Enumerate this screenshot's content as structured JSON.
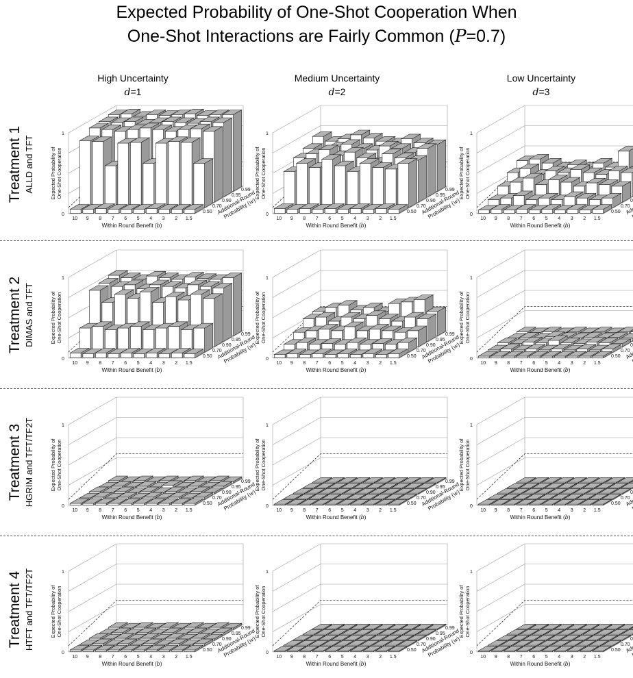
{
  "title_line_1": "Expected Probability of One-Shot Cooperation When",
  "title_line_2_prefix": "One-Shot Interactions are Fairly Common (",
  "title_line_2_var": "P",
  "title_line_2_suffix": "=0.7)",
  "colors": {
    "bar_top": "#b3b3b3",
    "bar_front": "#ffffff",
    "bar_side": "#9a9a9a",
    "edge": "#222222",
    "grid": "#999999",
    "divider": "#555555"
  },
  "columns": [
    {
      "heading": "High Uncertainty",
      "var": "d",
      "value": "=1"
    },
    {
      "heading": "Medium Uncertainty",
      "var": "d",
      "value": "=2"
    },
    {
      "heading": "Low Uncertainty",
      "var": "d",
      "value": "=3"
    }
  ],
  "rows": [
    {
      "title": "Treatment 1",
      "subtitle": "ALLD and TFT"
    },
    {
      "title": "Treatment 2",
      "subtitle": "DIMAS and TFT"
    },
    {
      "title": "Treatment 3",
      "subtitle": "HGRIM and TFT/TF2T"
    },
    {
      "title": "Treatment 4",
      "subtitle": "HTFT and TFT/TF2T"
    }
  ],
  "axis_labels": {
    "z_line_1": "Expected Probability of",
    "z_line_2": "One-Shot Cooperation",
    "x": "Within Round Benefit (",
    "x_var": "b",
    "x_close": ")",
    "y_line_1": "Additional-Round",
    "y_line_2": "Probability (",
    "y_var": "w",
    "y_close": ")"
  },
  "chart_data": {
    "type": "bar3d",
    "x_name": "Within Round Benefit (b)",
    "y_name": "Additional-Round Probability (w)",
    "z_name": "Expected Probability of One-Shot Cooperation",
    "b_ticks": [
      "10",
      "9",
      "8",
      "7",
      "6",
      "5",
      "4",
      "3",
      "2",
      "1.5"
    ],
    "w_ticks": [
      "0.50",
      "0.70",
      "0.90",
      "0.95",
      "0.99"
    ],
    "z_ticks": [
      "0",
      "1"
    ],
    "zlim": [
      0,
      1
    ],
    "panel_order": "rows[treatment] x columns[uncertainty d=1,2,3]; values[w_index][b_index], w order 0.50,0.70,0.90,0.95,0.99; b order 10..1.5",
    "panels": [
      {
        "treatment": "Treatment 1",
        "d": "1",
        "values": [
          [
            0.05,
            0.05,
            0.06,
            0.05,
            0.05,
            0.05,
            0.06,
            0.05,
            0.05,
            0.05
          ],
          [
            0.83,
            0.82,
            0.52,
            0.8,
            0.81,
            0.55,
            0.8,
            0.82,
            0.81,
            0.55
          ],
          [
            0.92,
            0.9,
            0.88,
            0.9,
            0.92,
            0.9,
            0.88,
            0.9,
            0.91,
            0.88
          ],
          [
            0.93,
            0.92,
            0.93,
            0.9,
            0.92,
            0.93,
            0.92,
            0.91,
            0.93,
            0.92
          ],
          [
            0.95,
            0.96,
            0.93,
            0.95,
            0.94,
            0.95,
            0.96,
            0.94,
            0.95,
            0.95
          ]
        ]
      },
      {
        "treatment": "Treatment 1",
        "d": "2",
        "values": [
          [
            0.06,
            0.05,
            0.06,
            0.05,
            0.06,
            0.05,
            0.06,
            0.05,
            0.06,
            0.05
          ],
          [
            0.45,
            0.55,
            0.5,
            0.6,
            0.52,
            0.45,
            0.55,
            0.5,
            0.48,
            0.55
          ],
          [
            0.55,
            0.6,
            0.65,
            0.58,
            0.62,
            0.55,
            0.5,
            0.6,
            0.55,
            0.52
          ],
          [
            0.6,
            0.55,
            0.62,
            0.65,
            0.6,
            0.58,
            0.63,
            0.6,
            0.55,
            0.6
          ],
          [
            0.68,
            0.62,
            0.65,
            0.7,
            0.66,
            0.62,
            0.6,
            0.65,
            0.6,
            0.58
          ]
        ]
      },
      {
        "treatment": "Treatment 1",
        "d": "3",
        "values": [
          [
            0.04,
            0.05,
            0.04,
            0.05,
            0.04,
            0.05,
            0.04,
            0.05,
            0.04,
            0.05
          ],
          [
            0.1,
            0.12,
            0.15,
            0.1,
            0.12,
            0.1,
            0.14,
            0.12,
            0.1,
            0.12
          ],
          [
            0.2,
            0.25,
            0.3,
            0.22,
            0.28,
            0.25,
            0.2,
            0.24,
            0.22,
            0.2
          ],
          [
            0.3,
            0.35,
            0.28,
            0.32,
            0.3,
            0.34,
            0.3,
            0.28,
            0.32,
            0.3
          ],
          [
            0.38,
            0.4,
            0.35,
            0.3,
            0.33,
            0.3,
            0.35,
            0.3,
            0.5,
            0.3
          ]
        ]
      },
      {
        "treatment": "Treatment 2",
        "d": "1",
        "values": [
          [
            0.06,
            0.05,
            0.06,
            0.05,
            0.06,
            0.05,
            0.06,
            0.05,
            0.06,
            0.05
          ],
          [
            0.3,
            0.32,
            0.28,
            0.3,
            0.32,
            0.28,
            0.3,
            0.32,
            0.28,
            0.3
          ],
          [
            0.7,
            0.55,
            0.65,
            0.6,
            0.68,
            0.55,
            0.62,
            0.58,
            0.65,
            0.6
          ],
          [
            0.72,
            0.68,
            0.7,
            0.65,
            0.7,
            0.68,
            0.66,
            0.7,
            0.68,
            0.66
          ],
          [
            0.75,
            0.72,
            0.7,
            0.74,
            0.72,
            0.7,
            0.73,
            0.71,
            0.7,
            0.72
          ]
        ]
      },
      {
        "treatment": "Treatment 2",
        "d": "2",
        "values": [
          [
            0.04,
            0.05,
            0.04,
            0.05,
            0.04,
            0.05,
            0.04,
            0.05,
            0.04,
            0.05
          ],
          [
            0.1,
            0.12,
            0.1,
            0.11,
            0.1,
            0.12,
            0.1,
            0.11,
            0.1,
            0.12
          ],
          [
            0.18,
            0.2,
            0.22,
            0.2,
            0.25,
            0.2,
            0.22,
            0.2,
            0.18,
            0.2
          ],
          [
            0.28,
            0.3,
            0.25,
            0.3,
            0.28,
            0.32,
            0.28,
            0.25,
            0.3,
            0.28
          ],
          [
            0.3,
            0.35,
            0.38,
            0.32,
            0.35,
            0.3,
            0.4,
            0.42,
            0.45,
            0.3
          ]
        ]
      },
      {
        "treatment": "Treatment 2",
        "d": "3",
        "values": [
          [
            0.02,
            0.02,
            0.02,
            0.02,
            0.02,
            0.02,
            0.02,
            0.02,
            0.02,
            0.02
          ],
          [
            0.03,
            0.04,
            0.03,
            0.04,
            0.03,
            0.04,
            0.03,
            0.04,
            0.03,
            0.04
          ],
          [
            0.05,
            0.04,
            0.06,
            0.05,
            0.08,
            0.05,
            0.04,
            0.06,
            0.05,
            0.04
          ],
          [
            0.04,
            0.05,
            0.04,
            0.06,
            0.05,
            0.04,
            0.05,
            0.04,
            0.05,
            0.04
          ],
          [
            0.05,
            0.04,
            0.05,
            0.04,
            0.05,
            0.04,
            0.05,
            0.04,
            0.05,
            0.05
          ]
        ]
      },
      {
        "treatment": "Treatment 3",
        "d": "1",
        "values": [
          [
            0.02,
            0.02,
            0.02,
            0.02,
            0.02,
            0.02,
            0.02,
            0.02,
            0.02,
            0.02
          ],
          [
            0.02,
            0.03,
            0.02,
            0.03,
            0.02,
            0.03,
            0.02,
            0.03,
            0.02,
            0.03
          ],
          [
            0.03,
            0.02,
            0.03,
            0.02,
            0.03,
            0.02,
            0.03,
            0.02,
            0.03,
            0.02
          ],
          [
            0.02,
            0.03,
            0.02,
            0.03,
            0.02,
            0.04,
            0.02,
            0.03,
            0.02,
            0.03
          ],
          [
            0.03,
            0.02,
            0.03,
            0.02,
            0.03,
            0.02,
            0.03,
            0.02,
            0.03,
            0.02
          ]
        ]
      },
      {
        "treatment": "Treatment 3",
        "d": "2",
        "values": [
          [
            0.01,
            0.01,
            0.01,
            0.01,
            0.01,
            0.01,
            0.01,
            0.01,
            0.01,
            0.01
          ],
          [
            0.01,
            0.01,
            0.01,
            0.01,
            0.01,
            0.01,
            0.01,
            0.01,
            0.01,
            0.01
          ],
          [
            0.01,
            0.01,
            0.01,
            0.01,
            0.01,
            0.01,
            0.01,
            0.01,
            0.01,
            0.01
          ],
          [
            0.01,
            0.01,
            0.01,
            0.01,
            0.01,
            0.01,
            0.01,
            0.01,
            0.01,
            0.01
          ],
          [
            0.01,
            0.01,
            0.01,
            0.01,
            0.01,
            0.01,
            0.01,
            0.01,
            0.01,
            0.01
          ]
        ]
      },
      {
        "treatment": "Treatment 3",
        "d": "3",
        "values": [
          [
            0.01,
            0.01,
            0.01,
            0.01,
            0.01,
            0.01,
            0.01,
            0.01,
            0.01,
            0.01
          ],
          [
            0.01,
            0.01,
            0.01,
            0.01,
            0.01,
            0.01,
            0.01,
            0.01,
            0.01,
            0.01
          ],
          [
            0.01,
            0.01,
            0.01,
            0.01,
            0.01,
            0.01,
            0.01,
            0.01,
            0.01,
            0.01
          ],
          [
            0.01,
            0.01,
            0.01,
            0.01,
            0.01,
            0.01,
            0.01,
            0.01,
            0.01,
            0.01
          ],
          [
            0.01,
            0.01,
            0.01,
            0.01,
            0.01,
            0.01,
            0.01,
            0.01,
            0.01,
            0.01
          ]
        ]
      },
      {
        "treatment": "Treatment 4",
        "d": "1",
        "values": [
          [
            0.02,
            0.02,
            0.02,
            0.02,
            0.02,
            0.02,
            0.02,
            0.02,
            0.02,
            0.02
          ],
          [
            0.02,
            0.03,
            0.02,
            0.03,
            0.02,
            0.03,
            0.02,
            0.03,
            0.02,
            0.03
          ],
          [
            0.03,
            0.02,
            0.03,
            0.02,
            0.03,
            0.02,
            0.03,
            0.02,
            0.03,
            0.02
          ],
          [
            0.02,
            0.03,
            0.02,
            0.03,
            0.02,
            0.03,
            0.02,
            0.03,
            0.02,
            0.03
          ],
          [
            0.03,
            0.02,
            0.03,
            0.02,
            0.03,
            0.02,
            0.03,
            0.02,
            0.03,
            0.02
          ]
        ]
      },
      {
        "treatment": "Treatment 4",
        "d": "2",
        "values": [
          [
            0.01,
            0.01,
            0.01,
            0.01,
            0.01,
            0.01,
            0.01,
            0.01,
            0.01,
            0.01
          ],
          [
            0.01,
            0.01,
            0.01,
            0.01,
            0.01,
            0.01,
            0.01,
            0.01,
            0.01,
            0.01
          ],
          [
            0.01,
            0.01,
            0.01,
            0.01,
            0.01,
            0.01,
            0.01,
            0.01,
            0.01,
            0.01
          ],
          [
            0.01,
            0.01,
            0.01,
            0.01,
            0.01,
            0.01,
            0.01,
            0.01,
            0.01,
            0.01
          ],
          [
            0.01,
            0.01,
            0.01,
            0.01,
            0.01,
            0.01,
            0.01,
            0.01,
            0.01,
            0.01
          ]
        ]
      },
      {
        "treatment": "Treatment 4",
        "d": "3",
        "values": [
          [
            0.01,
            0.01,
            0.01,
            0.01,
            0.01,
            0.01,
            0.01,
            0.01,
            0.01,
            0.01
          ],
          [
            0.01,
            0.01,
            0.01,
            0.01,
            0.01,
            0.01,
            0.01,
            0.01,
            0.01,
            0.01
          ],
          [
            0.01,
            0.01,
            0.01,
            0.01,
            0.01,
            0.01,
            0.01,
            0.01,
            0.01,
            0.01
          ],
          [
            0.01,
            0.01,
            0.01,
            0.01,
            0.01,
            0.01,
            0.01,
            0.01,
            0.01,
            0.01
          ],
          [
            0.01,
            0.01,
            0.01,
            0.01,
            0.01,
            0.01,
            0.01,
            0.01,
            0.01,
            0.01
          ]
        ]
      }
    ]
  }
}
